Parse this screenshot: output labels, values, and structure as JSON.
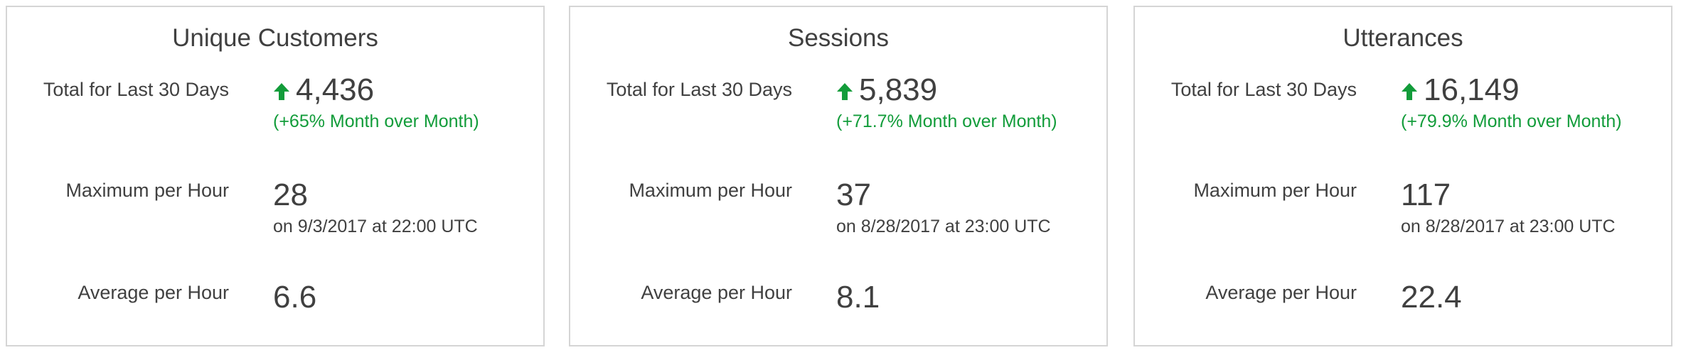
{
  "colors": {
    "positive": "#129c3a",
    "text": "#404040",
    "border": "#d5d5d5"
  },
  "cards": [
    {
      "title": "Unique Customers",
      "total_label": "Total for Last 30 Days",
      "total_value": "4,436",
      "total_trend_icon": "arrow-up-icon",
      "total_change": "(+65% Month over Month)",
      "max_label": "Maximum per Hour",
      "max_value": "28",
      "max_when": "on 9/3/2017 at 22:00 UTC",
      "avg_label": "Average per Hour",
      "avg_value": "6.6"
    },
    {
      "title": "Sessions",
      "total_label": "Total for Last 30 Days",
      "total_value": "5,839",
      "total_trend_icon": "arrow-up-icon",
      "total_change": "(+71.7% Month over Month)",
      "max_label": "Maximum per Hour",
      "max_value": "37",
      "max_when": "on 8/28/2017 at 23:00 UTC",
      "avg_label": "Average per Hour",
      "avg_value": "8.1"
    },
    {
      "title": "Utterances",
      "total_label": "Total for Last 30 Days",
      "total_value": "16,149",
      "total_trend_icon": "arrow-up-icon",
      "total_change": "(+79.9% Month over Month)",
      "max_label": "Maximum per Hour",
      "max_value": "117",
      "max_when": "on 8/28/2017 at 23:00 UTC",
      "avg_label": "Average per Hour",
      "avg_value": "22.4"
    }
  ]
}
